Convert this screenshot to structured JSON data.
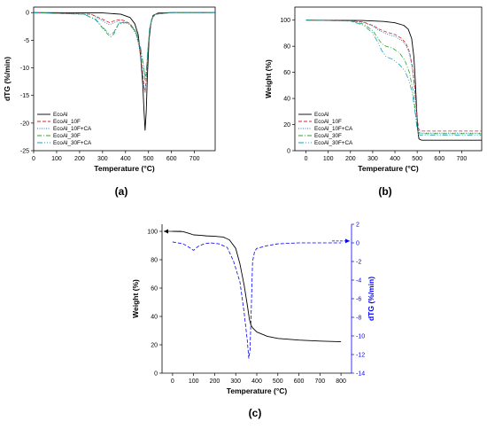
{
  "chart_data": [
    {
      "panel": "(a)",
      "type": "line",
      "xlabel": "Temperature (°C)",
      "ylabel": "dTG (%/min)",
      "xlim": [
        0,
        790
      ],
      "ylim": [
        -25,
        1
      ],
      "xticks": [
        0,
        100,
        200,
        300,
        400,
        500,
        600,
        700
      ],
      "yticks": [
        0,
        -5,
        -10,
        -15,
        -20,
        -25
      ],
      "legend_position": "bottom-left",
      "series": [
        {
          "name": "EcoAl",
          "color": "#000000",
          "dash": "solid",
          "x": [
            0,
            300,
            380,
            420,
            440,
            455,
            465,
            475,
            480,
            485,
            490,
            495,
            502,
            510,
            520,
            540,
            600,
            790
          ],
          "y": [
            0,
            -0.05,
            -0.3,
            -0.9,
            -2,
            -4,
            -7.5,
            -13,
            -17.5,
            -21.3,
            -18,
            -11.5,
            -5,
            -2,
            -0.5,
            -0.1,
            0,
            0
          ]
        },
        {
          "name": "EcoAl_10F",
          "color": "#d62728",
          "dash": "4,2",
          "x": [
            0,
            250,
            300,
            330,
            350,
            380,
            420,
            445,
            460,
            472,
            480,
            485,
            490,
            497,
            505,
            515,
            530,
            600,
            790
          ],
          "y": [
            0,
            -0.3,
            -1.2,
            -1.8,
            -1.5,
            -1.2,
            -2,
            -3.5,
            -6,
            -10,
            -13.2,
            -14.3,
            -12,
            -7,
            -3,
            -1,
            -0.3,
            0,
            0
          ]
        },
        {
          "name": "EcoAl_10F+CA",
          "color": "#1f77b4",
          "dash": "1,1.5",
          "x": [
            0,
            250,
            300,
            330,
            350,
            380,
            420,
            445,
            460,
            472,
            480,
            485,
            490,
            497,
            505,
            515,
            530,
            600,
            790
          ],
          "y": [
            0,
            -0.3,
            -1.5,
            -2.2,
            -1.8,
            -1.4,
            -2.2,
            -3.8,
            -6.5,
            -10.5,
            -13.5,
            -14.6,
            -12.5,
            -7.5,
            -3,
            -1,
            -0.3,
            0,
            0
          ]
        },
        {
          "name": "EcoAl_30F",
          "color": "#2ca02c",
          "dash": "5,2,1,2",
          "x": [
            0,
            220,
            270,
            300,
            320,
            335,
            350,
            370,
            410,
            445,
            465,
            478,
            485,
            490,
            497,
            505,
            515,
            530,
            600,
            790
          ],
          "y": [
            0,
            -0.3,
            -1.3,
            -2.8,
            -3.8,
            -4.4,
            -3.8,
            -2,
            -1.8,
            -3.5,
            -6.5,
            -10,
            -12.3,
            -11,
            -7,
            -3,
            -1,
            -0.3,
            0,
            0
          ]
        },
        {
          "name": "EcoAl_30F+CA",
          "color": "#17a2b8",
          "dash": "6,2,1,2,1,2",
          "x": [
            0,
            220,
            270,
            300,
            320,
            335,
            350,
            370,
            410,
            445,
            465,
            478,
            485,
            490,
            497,
            505,
            515,
            530,
            600,
            790
          ],
          "y": [
            0,
            -0.3,
            -1.2,
            -2.6,
            -3.5,
            -4,
            -3.5,
            -1.9,
            -1.7,
            -3.3,
            -6.2,
            -9.5,
            -11.6,
            -10.5,
            -6.5,
            -2.8,
            -1,
            -0.3,
            0,
            0
          ]
        }
      ]
    },
    {
      "panel": "(b)",
      "type": "line",
      "xlabel": "Temperature (°C)",
      "ylabel": "Weight (%)",
      "xlim": [
        -50,
        790
      ],
      "ylim": [
        0,
        110
      ],
      "xticks": [
        0,
        100,
        200,
        300,
        400,
        500,
        600,
        700
      ],
      "yticks": [
        0,
        20,
        40,
        60,
        80,
        100
      ],
      "legend_position": "bottom-left",
      "series": [
        {
          "name": "EcoAl",
          "color": "#000000",
          "dash": "solid",
          "x": [
            0,
            250,
            350,
            400,
            440,
            460,
            475,
            485,
            492,
            498,
            503,
            508,
            520,
            600,
            790
          ],
          "y": [
            100,
            99.8,
            99,
            98,
            96,
            93,
            86,
            72,
            52,
            30,
            15,
            9,
            8,
            8,
            8
          ]
        },
        {
          "name": "EcoAl_10F",
          "color": "#d62728",
          "dash": "4,2",
          "x": [
            0,
            200,
            260,
            300,
            330,
            360,
            400,
            430,
            450,
            465,
            478,
            488,
            495,
            502,
            508,
            520,
            600,
            790
          ],
          "y": [
            100,
            99.5,
            98.5,
            96,
            93,
            91,
            89,
            86,
            82,
            76,
            65,
            50,
            35,
            22,
            16,
            15,
            15,
            15
          ]
        },
        {
          "name": "EcoAl_10F+CA",
          "color": "#1f77b4",
          "dash": "1,1.5",
          "x": [
            0,
            200,
            260,
            300,
            330,
            360,
            400,
            430,
            450,
            465,
            478,
            488,
            495,
            502,
            508,
            520,
            600,
            790
          ],
          "y": [
            100,
            99.5,
            98.2,
            95.5,
            92,
            89.5,
            87.5,
            84.5,
            80.5,
            74,
            63,
            48,
            33,
            20,
            14.5,
            13.5,
            13.5,
            13.5
          ]
        },
        {
          "name": "EcoAl_30F",
          "color": "#2ca02c",
          "dash": "5,2,1,2",
          "x": [
            0,
            200,
            260,
            300,
            320,
            340,
            360,
            390,
            420,
            445,
            465,
            480,
            490,
            498,
            505,
            515,
            600,
            790
          ],
          "y": [
            100,
            99.3,
            97,
            92,
            87,
            82,
            80,
            78.5,
            75,
            69,
            60,
            47,
            33,
            20,
            14,
            13,
            13,
            13
          ]
        },
        {
          "name": "EcoAl_30F+CA",
          "color": "#17a2b8",
          "dash": "6,2,1,2,1,2",
          "x": [
            0,
            200,
            260,
            300,
            320,
            340,
            360,
            390,
            420,
            445,
            465,
            480,
            490,
            498,
            505,
            515,
            600,
            790
          ],
          "y": [
            100,
            99.3,
            96,
            90,
            84,
            77,
            72,
            70,
            66,
            61,
            53,
            42,
            30,
            19,
            12.5,
            12,
            12,
            12
          ]
        }
      ]
    },
    {
      "panel": "(c)",
      "type": "line",
      "xlabel": "Temperature (°C)",
      "ylabel": "Weight (%)",
      "ylabel2": "dTG (%/min)",
      "xlim": [
        -50,
        850
      ],
      "ylim": [
        0,
        105
      ],
      "y2lim": [
        -14,
        2
      ],
      "xticks": [
        0,
        100,
        200,
        300,
        400,
        500,
        600,
        700,
        800
      ],
      "yticks": [
        0,
        20,
        40,
        60,
        80,
        100
      ],
      "y2ticks": [
        2,
        0,
        -2,
        -4,
        -6,
        -8,
        -10,
        -12,
        -14
      ],
      "series": [
        {
          "name": "Weight",
          "color": "#000000",
          "dash": "solid",
          "axis": "left",
          "x": [
            0,
            50,
            80,
            100,
            130,
            160,
            200,
            240,
            270,
            300,
            320,
            340,
            355,
            365,
            372,
            380,
            400,
            450,
            500,
            600,
            700,
            800
          ],
          "y": [
            100,
            99.8,
            98.5,
            97.5,
            97.2,
            96.8,
            96.5,
            96,
            94,
            88,
            77,
            62,
            48,
            38,
            34,
            32,
            29,
            26,
            24.5,
            23.3,
            22.6,
            22.2
          ]
        },
        {
          "name": "dTG",
          "color": "#0000ff",
          "dash": "4,2",
          "axis": "right",
          "x": [
            0,
            50,
            80,
            100,
            120,
            150,
            180,
            220,
            260,
            290,
            320,
            340,
            355,
            362,
            368,
            374,
            380,
            390,
            400,
            450,
            500,
            600,
            700,
            800
          ],
          "y": [
            0.1,
            -0.1,
            -0.5,
            -0.8,
            -0.4,
            -0.1,
            0,
            -0.1,
            -0.5,
            -2,
            -4.2,
            -7.5,
            -10.5,
            -12.4,
            -11.5,
            -7,
            -2,
            -0.9,
            -0.6,
            -0.3,
            -0.1,
            0,
            0,
            0
          ]
        }
      ]
    }
  ]
}
